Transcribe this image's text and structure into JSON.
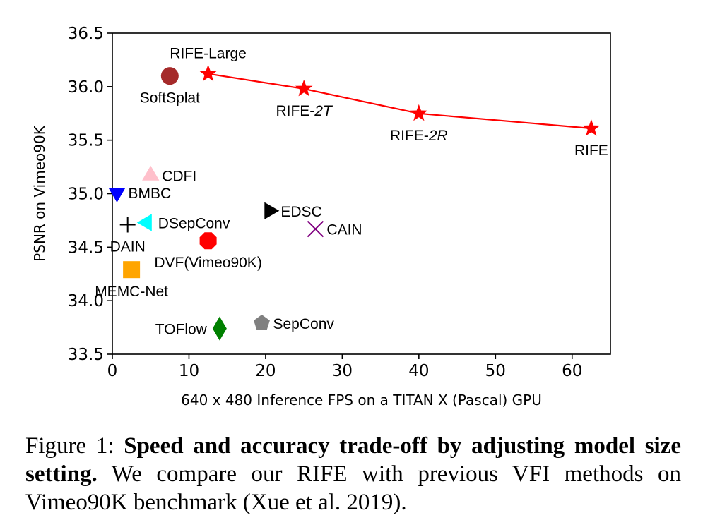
{
  "chart_data": {
    "type": "scatter",
    "xlabel": "640 x 480 Inference FPS on a TITAN X (Pascal) GPU",
    "ylabel": "PSNR on Vimeo90K",
    "xlim": [
      0,
      65
    ],
    "ylim": [
      33.5,
      36.5
    ],
    "xticks": [
      0,
      10,
      20,
      30,
      40,
      50,
      60
    ],
    "yticks": [
      33.5,
      34.0,
      34.5,
      35.0,
      35.5,
      36.0,
      36.5
    ],
    "grid": false,
    "line_series": {
      "color": "#ff0000",
      "marker": "star",
      "points": [
        {
          "x": 12.5,
          "y": 36.12,
          "label": "RIFE-Large",
          "label_parts": [
            "RIFE-Large"
          ],
          "label_pos": "above"
        },
        {
          "x": 25,
          "y": 35.98,
          "label": "RIFE-2T",
          "label_parts": [
            "RIFE-",
            "2T"
          ],
          "label_pos": "below"
        },
        {
          "x": 40,
          "y": 35.75,
          "label": "RIFE-2R",
          "label_parts": [
            "RIFE-",
            "2R"
          ],
          "label_pos": "below"
        },
        {
          "x": 62.5,
          "y": 35.61,
          "label": "RIFE",
          "label_parts": [
            "RIFE"
          ],
          "label_pos": "below"
        }
      ]
    },
    "points": [
      {
        "name": "SoftSplat",
        "x": 7.5,
        "y": 36.1,
        "marker": "circle",
        "color": "#a52a2a",
        "label_pos": "below"
      },
      {
        "name": "CDFI",
        "x": 5,
        "y": 35.17,
        "marker": "triangle-up",
        "color": "#ffc0cb",
        "label_pos": "right"
      },
      {
        "name": "BMBC",
        "x": 0.6,
        "y": 35.01,
        "marker": "triangle-down",
        "color": "#0000ff",
        "label_pos": "right"
      },
      {
        "name": "EDSC",
        "x": 20.5,
        "y": 34.84,
        "marker": "triangle-right",
        "color": "#000000",
        "label_pos": "right"
      },
      {
        "name": "DSepConv",
        "x": 4.5,
        "y": 34.73,
        "marker": "triangle-left",
        "color": "#00ffff",
        "label_pos": "right"
      },
      {
        "name": "DAIN",
        "x": 2,
        "y": 34.71,
        "marker": "plus",
        "color": "#000000",
        "label_pos": "below"
      },
      {
        "name": "CAIN",
        "x": 26.5,
        "y": 34.67,
        "marker": "x",
        "color": "#800080",
        "label_pos": "right"
      },
      {
        "name": "DVF(Vimeo90K)",
        "x": 12.5,
        "y": 34.56,
        "marker": "octagon",
        "color": "#ff0000",
        "label_pos": "below"
      },
      {
        "name": "MEMC-Net",
        "x": 2.5,
        "y": 34.29,
        "marker": "square",
        "color": "#ffa500",
        "label_pos": "below"
      },
      {
        "name": "SepConv",
        "x": 19.5,
        "y": 33.79,
        "marker": "pentagon",
        "color": "#808080",
        "label_pos": "right"
      },
      {
        "name": "TOFlow",
        "x": 14,
        "y": 33.74,
        "marker": "diamond",
        "color": "#008000",
        "label_pos": "left"
      }
    ]
  },
  "caption": {
    "prefix": "Figure 1: ",
    "bold": "Speed and accuracy trade-off by adjusting model size setting.",
    "rest": " We compare our RIFE with previous VFI methods on Vimeo90K benchmark (Xue et al. 2019)."
  }
}
